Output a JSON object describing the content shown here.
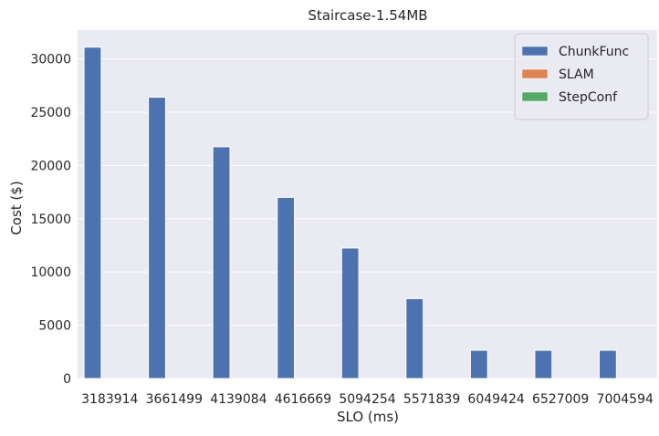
{
  "chart_data": {
    "type": "bar",
    "title": "Staircase-1.54MB",
    "xlabel": "SLO (ms)",
    "ylabel": "Cost ($)",
    "categories": [
      "3183914",
      "3661499",
      "4139084",
      "4616669",
      "5094254",
      "5571839",
      "6049424",
      "6527009",
      "7004594"
    ],
    "series": [
      {
        "name": "ChunkFunc",
        "color": "#4c72b0",
        "values": [
          31100,
          26400,
          21750,
          17000,
          12250,
          7500,
          2650,
          2650,
          2650
        ]
      },
      {
        "name": "SLAM",
        "color": "#dd8452",
        "values": [
          0,
          0,
          0,
          0,
          0,
          0,
          0,
          0,
          0
        ]
      },
      {
        "name": "StepConf",
        "color": "#55a868",
        "values": [
          0,
          0,
          0,
          0,
          0,
          0,
          0,
          0,
          0
        ]
      }
    ],
    "yticks": [
      0,
      5000,
      10000,
      15000,
      20000,
      25000,
      30000
    ],
    "ylim": [
      0,
      32700
    ],
    "grid": true,
    "legend_position": "top-right",
    "background": "#eaeaf2",
    "gridline_color": "#ffffff"
  }
}
